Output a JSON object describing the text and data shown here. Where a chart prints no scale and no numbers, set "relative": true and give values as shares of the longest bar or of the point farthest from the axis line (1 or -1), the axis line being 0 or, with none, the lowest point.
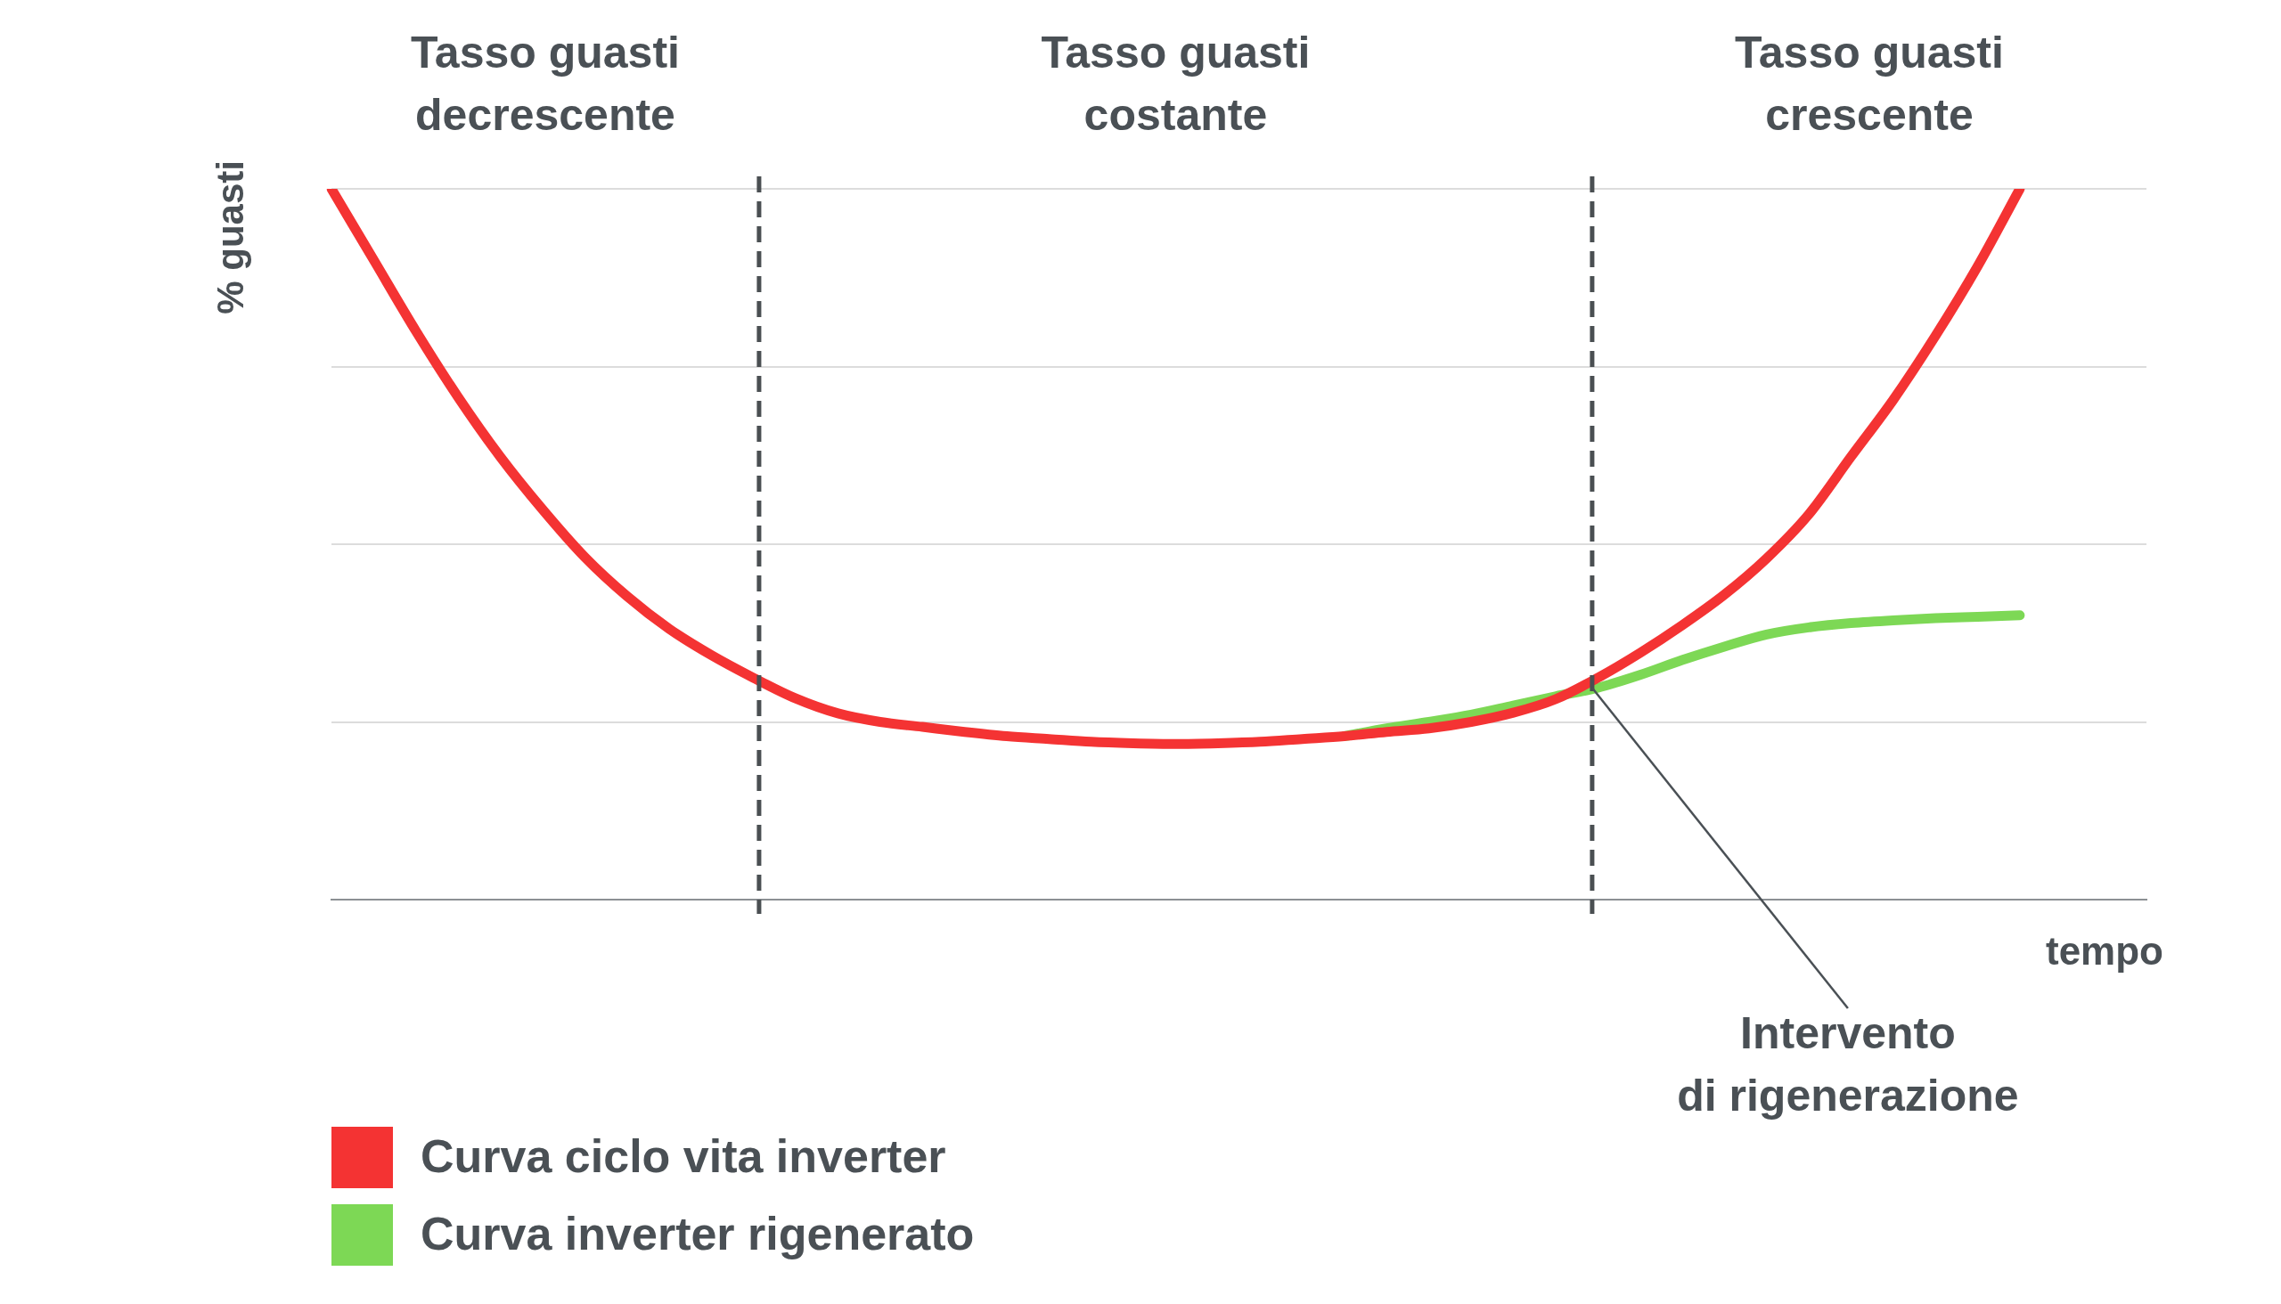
{
  "chart_data": {
    "type": "line",
    "relative": true,
    "grid": "y",
    "legend": "bottom left",
    "xlabel": "tempo",
    "ylabel": "% guasti",
    "annotations": [
      "Tasso guasti\ndecrescente",
      "Tasso guasti\ncostante",
      "Tasso guasti\ncrescente",
      "Intervento\ndi rigenerazione"
    ],
    "categories": [
      null,
      null,
      null,
      null,
      null,
      null,
      null,
      null,
      null,
      null,
      null,
      null,
      null,
      null,
      null,
      null,
      null,
      null,
      null,
      null,
      null,
      null,
      null,
      null,
      null,
      null,
      null,
      null,
      null,
      null,
      null,
      null,
      null,
      null,
      null,
      null,
      null,
      null,
      null,
      null,
      null,
      null,
      null,
      null
    ],
    "series": [
      {
        "name": "Curva ciclo vita inverter",
        "color": "#f43333",
        "values": [
          1,
          0.9,
          0.8,
          0.707,
          0.623,
          0.549,
          0.482,
          0.427,
          0.381,
          0.344,
          0.312,
          0.283,
          0.262,
          0.25,
          0.243,
          0.236,
          0.23,
          0.226,
          0.222,
          0.22,
          0.219,
          0.22,
          0.222,
          0.226,
          0.23,
          0.236,
          0.241,
          0.25,
          0.263,
          0.282,
          0.312,
          0.347,
          0.386,
          0.429,
          0.48,
          0.542,
          0.623,
          0.703,
          0.793,
          0.891,
          1,
          null,
          null,
          null
        ]
      },
      {
        "name": "Curva inverter rigenerato",
        "color": "#7dd855",
        "values": [
          null,
          null,
          null,
          null,
          null,
          null,
          null,
          null,
          null,
          null,
          null,
          null,
          null,
          null,
          null,
          null,
          null,
          null,
          null,
          null,
          null,
          null,
          null,
          null,
          0.23,
          0.241,
          0.25,
          0.26,
          0.273,
          0.286,
          0.298,
          0.316,
          0.337,
          0.356,
          0.373,
          0.383,
          0.389,
          0.393,
          0.396,
          0.398,
          0.4,
          null,
          null,
          null
        ]
      }
    ]
  }
}
